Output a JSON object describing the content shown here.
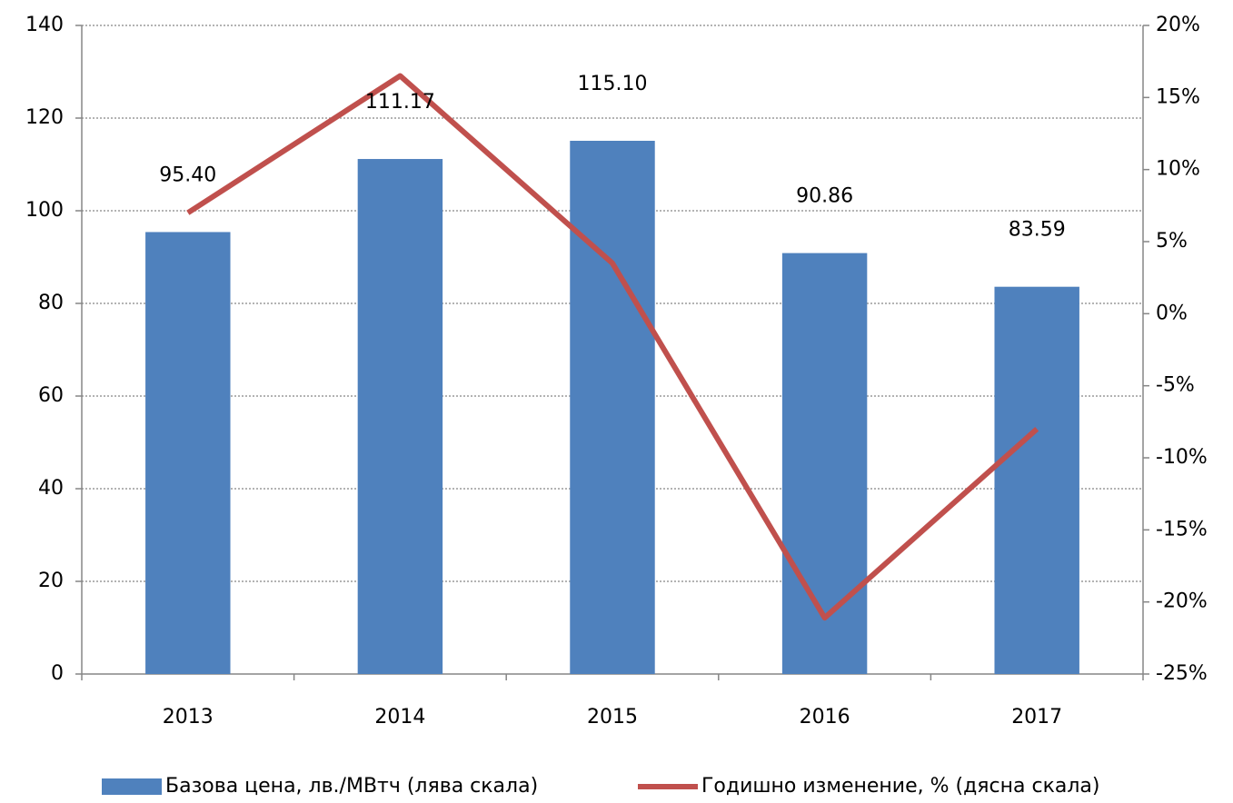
{
  "chart_data": {
    "type": "bar",
    "categories": [
      "2013",
      "2014",
      "2015",
      "2016",
      "2017"
    ],
    "series": [
      {
        "name": "Базова цена, лв./МВтч (лява скала)",
        "color": "#4f81bd",
        "type": "bar",
        "values": [
          95.4,
          111.17,
          115.1,
          90.86,
          83.59
        ],
        "value_labels": [
          "95.40",
          "111.17",
          "115.10",
          "90.86",
          "83.59"
        ]
      },
      {
        "name": "Годишно изменение, % (дясна скала)",
        "color": "#c0504d",
        "type": "line",
        "axis": "y2",
        "values": [
          7.0,
          16.5,
          3.5,
          -21.1,
          -8.0
        ]
      }
    ],
    "ylim": [
      0,
      140
    ],
    "yticks": [
      0,
      20,
      40,
      60,
      80,
      100,
      120,
      140
    ],
    "y2lim": [
      -25,
      20
    ],
    "y2ticks": [
      {
        "value": -25,
        "label": "-25%"
      },
      {
        "value": -20,
        "label": "-20%"
      },
      {
        "value": -15,
        "label": "-15%"
      },
      {
        "value": -10,
        "label": "-10%"
      },
      {
        "value": -5,
        "label": "-5%"
      },
      {
        "value": 0,
        "label": "0%"
      },
      {
        "value": 5,
        "label": "5%"
      },
      {
        "value": 10,
        "label": "10%"
      },
      {
        "value": 15,
        "label": "15%"
      },
      {
        "value": 20,
        "label": "20%"
      }
    ],
    "grid": true,
    "legend": "bottom"
  }
}
